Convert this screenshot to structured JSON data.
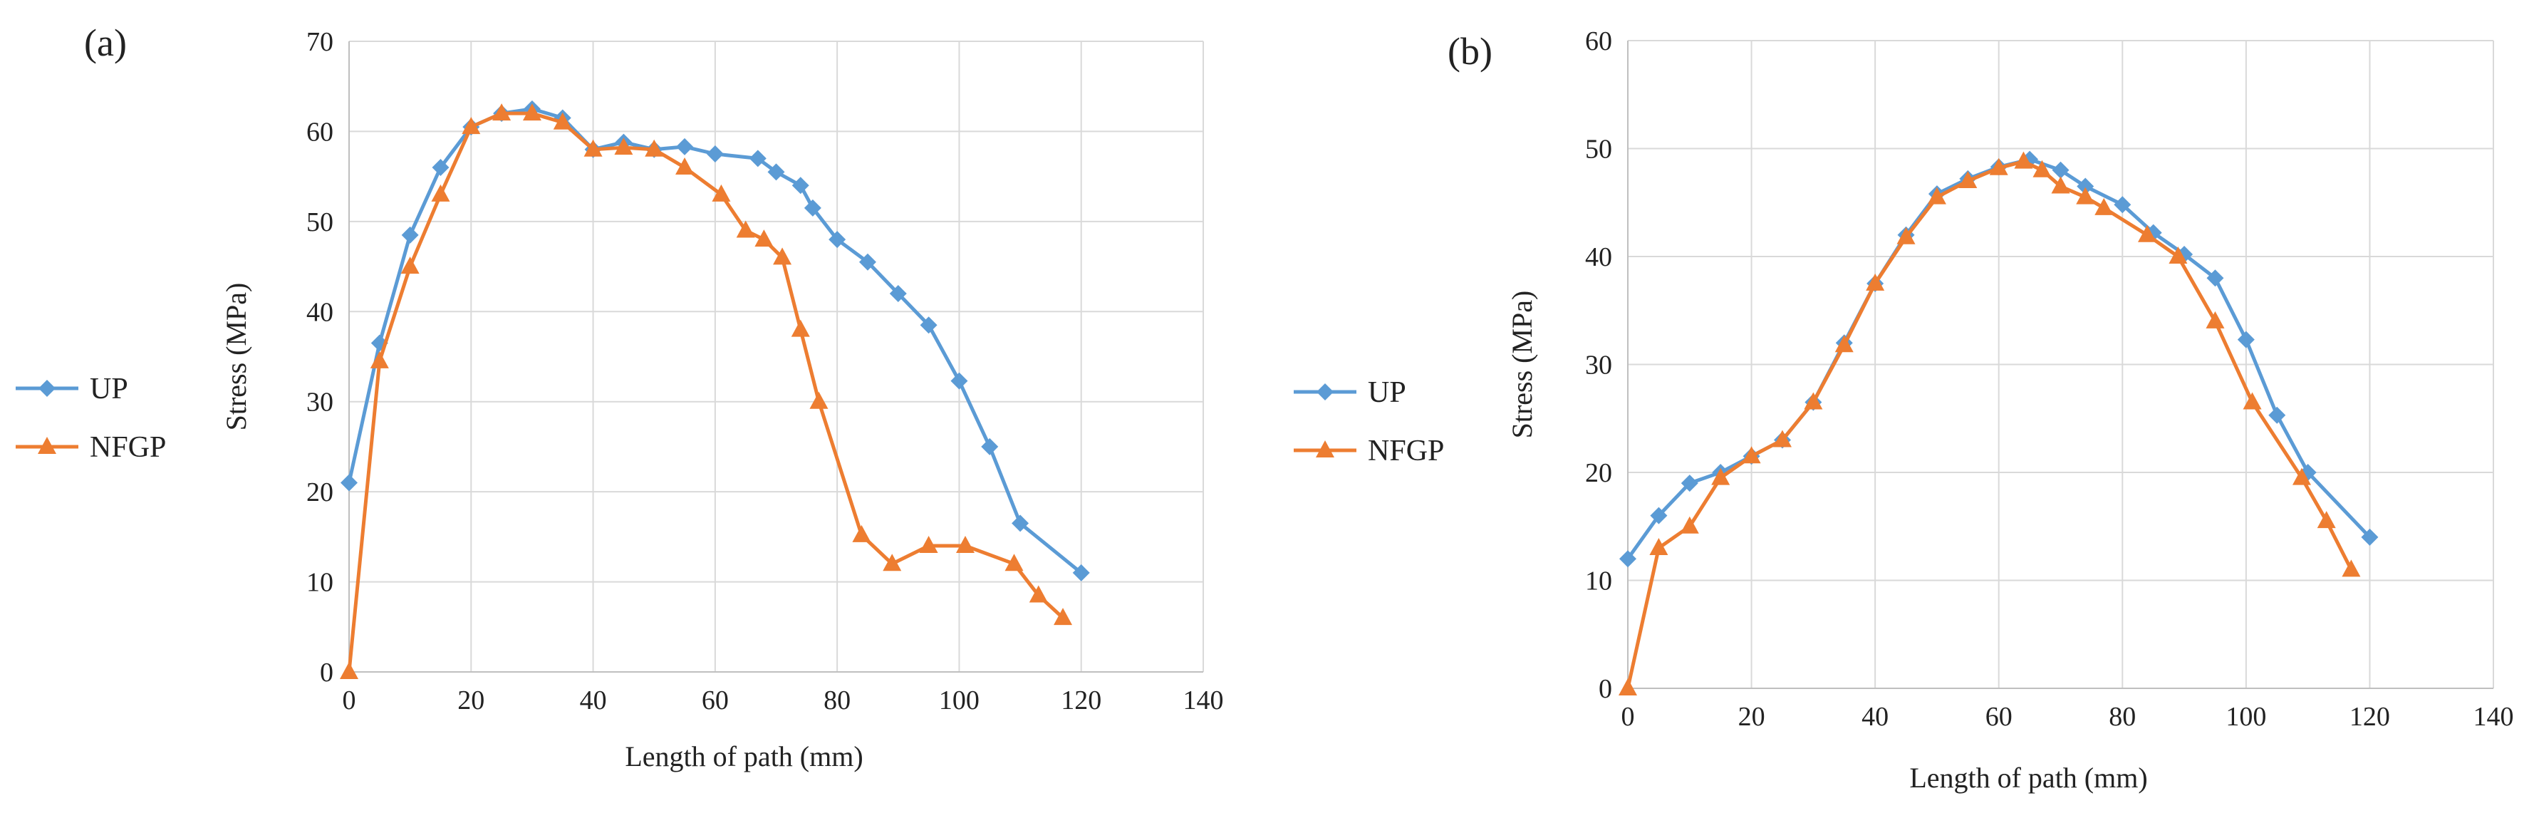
{
  "chart_data": [
    {
      "type": "line",
      "panel_label": "(a)",
      "xlabel": "Length  of path (mm)",
      "ylabel": "Stress  (MPa)",
      "xlim": [
        0,
        140
      ],
      "ylim": [
        0,
        70
      ],
      "xticks": [
        0,
        20,
        40,
        60,
        80,
        100,
        120,
        140
      ],
      "yticks": [
        0,
        10,
        20,
        30,
        40,
        50,
        60,
        70
      ],
      "grid": true,
      "legend_position": "left",
      "series": [
        {
          "name": "UP",
          "color": "#5b9bd5",
          "marker": "diamond",
          "x": [
            0,
            5,
            10,
            15,
            20,
            25,
            30,
            35,
            40,
            45,
            50,
            55,
            60,
            67,
            70,
            74,
            76,
            80,
            85,
            90,
            95,
            100,
            105,
            110,
            120
          ],
          "y": [
            21,
            36.5,
            48.5,
            56,
            60.5,
            62,
            62.5,
            61.5,
            58,
            58.8,
            58,
            58.3,
            57.5,
            57,
            55.5,
            54,
            51.5,
            48,
            45.5,
            42,
            38.5,
            32.3,
            25,
            16.5,
            11
          ]
        },
        {
          "name": "NFGP",
          "color": "#ed7d31",
          "marker": "triangle",
          "x": [
            0,
            5,
            10,
            15,
            20,
            25,
            30,
            35,
            40,
            45,
            50,
            55,
            61,
            65,
            68,
            71,
            74,
            77,
            84,
            89,
            95,
            101,
            109,
            113,
            117
          ],
          "y": [
            0,
            34.5,
            45,
            53,
            60.5,
            62,
            62,
            61,
            58,
            58.2,
            58,
            56,
            53,
            49,
            48,
            46,
            38,
            30,
            15.2,
            12,
            14,
            14,
            12,
            8.5,
            6
          ]
        }
      ]
    },
    {
      "type": "line",
      "panel_label": "(b)",
      "xlabel": "Length  of path (mm)",
      "ylabel": "Stress  (MPa)",
      "xlim": [
        0,
        140
      ],
      "ylim": [
        0,
        60
      ],
      "xticks": [
        0,
        20,
        40,
        60,
        80,
        100,
        120,
        140
      ],
      "yticks": [
        0,
        10,
        20,
        30,
        40,
        50,
        60
      ],
      "grid": true,
      "legend_position": "left",
      "series": [
        {
          "name": "UP",
          "color": "#5b9bd5",
          "marker": "diamond",
          "x": [
            0,
            5,
            10,
            15,
            20,
            25,
            30,
            35,
            40,
            45,
            50,
            55,
            60,
            65,
            70,
            74,
            80,
            85,
            90,
            95,
            100,
            105,
            110,
            120
          ],
          "y": [
            12,
            16,
            19,
            20,
            21.5,
            23,
            26.5,
            32,
            37.5,
            42,
            45.8,
            47.2,
            48.3,
            49,
            48,
            46.5,
            44.8,
            42.2,
            40.2,
            38,
            32.3,
            25.3,
            20,
            14
          ]
        },
        {
          "name": "NFGP",
          "color": "#ed7d31",
          "marker": "triangle",
          "x": [
            0,
            5,
            10,
            15,
            20,
            25,
            30,
            35,
            40,
            45,
            50,
            55,
            60,
            64,
            67,
            70,
            74,
            77,
            84,
            89,
            95,
            101,
            109,
            113,
            117
          ],
          "y": [
            0,
            13,
            15,
            19.5,
            21.5,
            23,
            26.5,
            31.8,
            37.5,
            41.8,
            45.5,
            47,
            48.2,
            48.8,
            48,
            46.5,
            45.5,
            44.5,
            42,
            40,
            34,
            26.5,
            19.5,
            15.5,
            11
          ]
        }
      ]
    }
  ]
}
